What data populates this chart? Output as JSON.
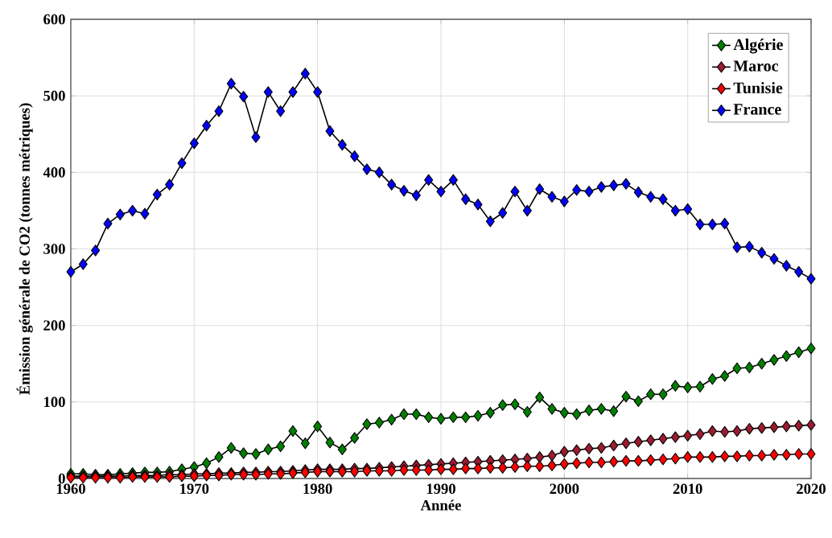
{
  "chart_data": {
    "type": "line",
    "xlabel": "Année",
    "ylabel": "Émission générale de CO2 (tonnes métriques)",
    "x": [
      1960,
      1961,
      1962,
      1963,
      1964,
      1965,
      1966,
      1967,
      1968,
      1969,
      1970,
      1971,
      1972,
      1973,
      1974,
      1975,
      1976,
      1977,
      1978,
      1979,
      1980,
      1981,
      1982,
      1983,
      1984,
      1985,
      1986,
      1987,
      1988,
      1989,
      1990,
      1991,
      1992,
      1993,
      1994,
      1995,
      1996,
      1997,
      1998,
      1999,
      2000,
      2001,
      2002,
      2003,
      2004,
      2005,
      2006,
      2007,
      2008,
      2009,
      2010,
      2011,
      2012,
      2013,
      2014,
      2015,
      2016,
      2017,
      2018,
      2019,
      2020
    ],
    "xlim": [
      1960,
      2020
    ],
    "xticks": [
      1960,
      1970,
      1980,
      1990,
      2000,
      2010,
      2020
    ],
    "ylim": [
      0,
      600
    ],
    "yticks": [
      0,
      100,
      200,
      300,
      400,
      500,
      600
    ],
    "grid": true,
    "legend": "top right",
    "marker": "diamond",
    "line_style": "solid",
    "series": [
      {
        "name": "Algérie",
        "color": "#008000",
        "values": [
          6,
          6,
          5,
          5,
          6,
          7,
          8,
          8,
          9,
          12,
          15,
          20,
          28,
          40,
          33,
          32,
          38,
          42,
          62,
          46,
          68,
          47,
          38,
          53,
          71,
          73,
          77,
          84,
          84,
          80,
          78,
          80,
          80,
          82,
          86,
          96,
          97,
          87,
          106,
          91,
          86,
          84,
          89,
          91,
          88,
          107,
          101,
          110,
          110,
          121,
          119,
          120,
          130,
          134,
          144,
          145,
          150,
          155,
          160,
          165,
          170
        ]
      },
      {
        "name": "Maroc",
        "color": "#9b1b30",
        "values": [
          3,
          3,
          3,
          3,
          3,
          4,
          4,
          4,
          5,
          5,
          6,
          6,
          7,
          7,
          8,
          8,
          9,
          9,
          10,
          11,
          12,
          12,
          12,
          13,
          13,
          14,
          15,
          16,
          17,
          18,
          19,
          20,
          21,
          22,
          23,
          24,
          25,
          26,
          28,
          30,
          35,
          37,
          39,
          40,
          43,
          46,
          48,
          50,
          52,
          54,
          56,
          58,
          62,
          61,
          62,
          65,
          66,
          67,
          68,
          69,
          70
        ]
      },
      {
        "name": "Tunisie",
        "color": "#ff0000",
        "values": [
          1,
          1,
          1,
          1,
          1,
          2,
          2,
          2,
          2,
          3,
          3,
          4,
          4,
          5,
          5,
          5,
          6,
          6,
          7,
          8,
          9,
          9,
          9,
          9,
          10,
          10,
          10,
          11,
          11,
          11,
          12,
          12,
          13,
          13,
          14,
          14,
          15,
          16,
          16,
          17,
          19,
          20,
          21,
          21,
          22,
          23,
          23,
          24,
          25,
          26,
          28,
          28,
          28,
          29,
          29,
          30,
          30,
          31,
          31,
          32,
          32
        ]
      },
      {
        "name": "France",
        "color": "#0000ff",
        "values": [
          270,
          280,
          298,
          333,
          345,
          350,
          346,
          371,
          384,
          412,
          438,
          461,
          480,
          516,
          499,
          446,
          505,
          480,
          505,
          529,
          505,
          454,
          436,
          421,
          404,
          400,
          384,
          376,
          370,
          390,
          375,
          390,
          365,
          358,
          336,
          347,
          375,
          350,
          378,
          368,
          362,
          377,
          375,
          381,
          383,
          385,
          374,
          368,
          365,
          350,
          352,
          332,
          332,
          333,
          302,
          303,
          295,
          287,
          278,
          270,
          261
        ]
      }
    ]
  }
}
